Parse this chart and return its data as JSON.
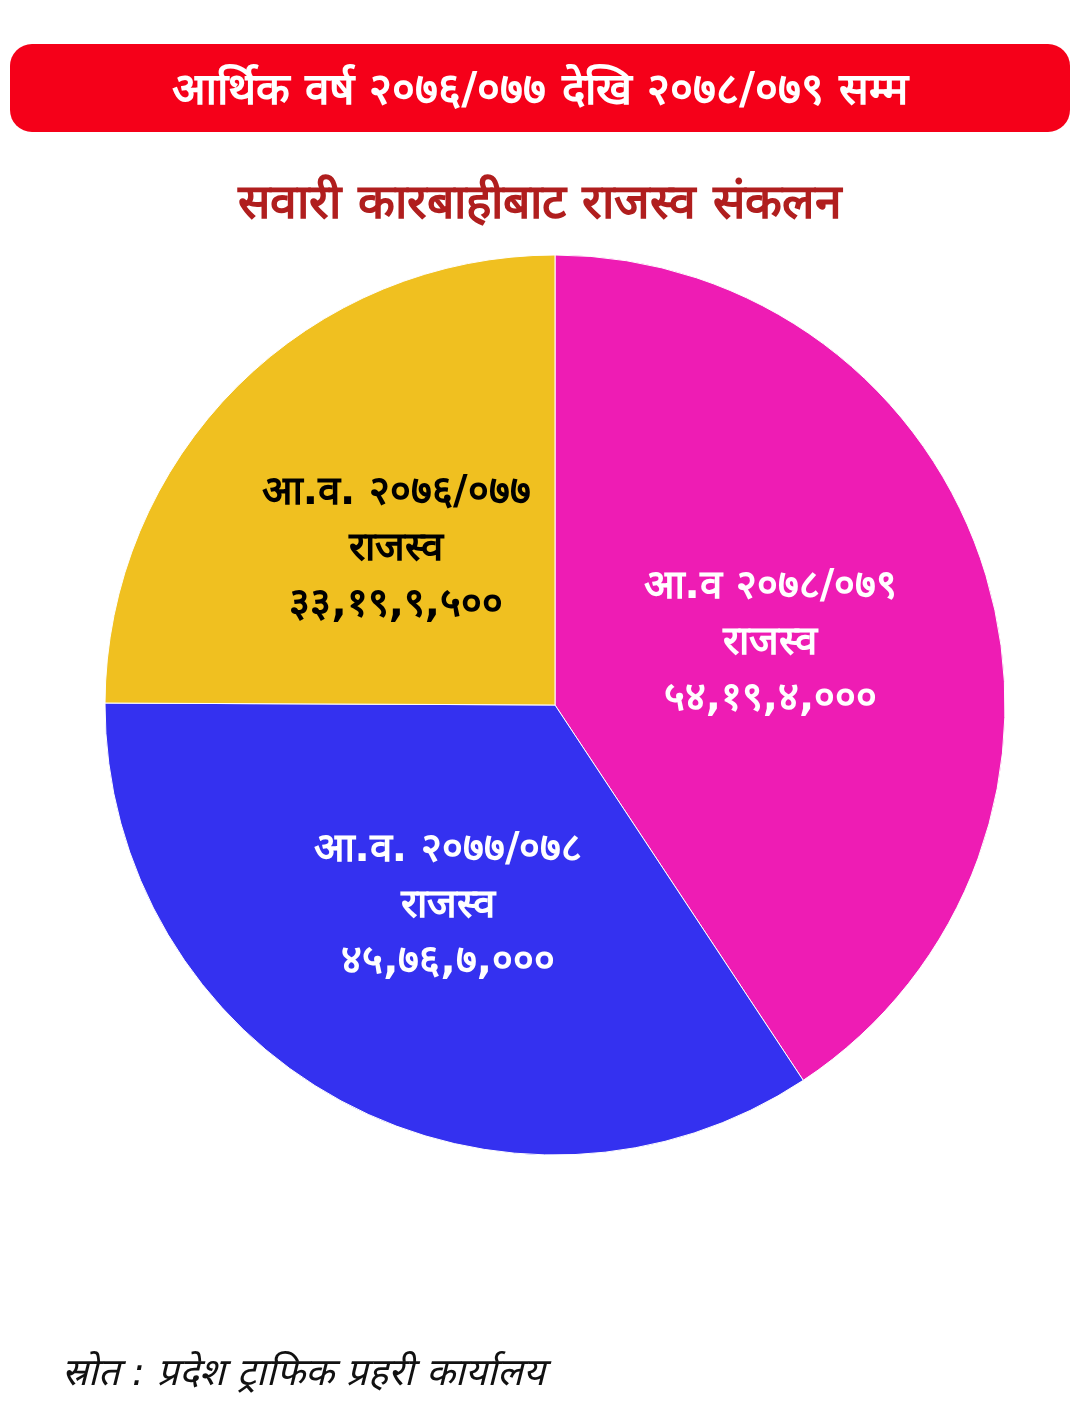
{
  "chart_data": {
    "type": "pie",
    "title": "आर्थिक वर्ष २०७६/०७७ देखि २०७८/०७९ सम्म",
    "subtitle": "सवारी कारबाहीबाट राजस्व संकलन",
    "categories": [
      "आ.व २०७८/०७९ राजस्व",
      "आ.व. २०७७/०७८ राजस्व",
      "आ.व. २०७६/०७७ राजस्व"
    ],
    "values": [
      40.7,
      34.37,
      24.93
    ],
    "value_labels": [
      "५४,१९,४,०००",
      "४५,७६,७,०००",
      "३३,१९,९,५००"
    ],
    "colors": [
      "#ee1cb4",
      "#3431f0",
      "#f0c020"
    ],
    "annotations": [
      "स्रोत : प्रदेश ट्राफिक प्रहरी कार्यालय"
    ]
  }
}
